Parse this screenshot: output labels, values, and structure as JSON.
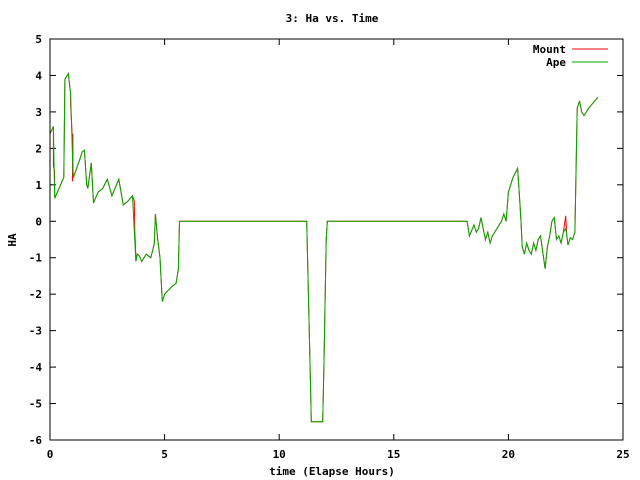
{
  "chart_data": {
    "type": "line",
    "title": "3: Ha vs. Time",
    "xlabel": "time (Elapse Hours)",
    "ylabel": "HA",
    "xlim": [
      0,
      25
    ],
    "ylim": [
      -6,
      5
    ],
    "xticks": [
      0,
      5,
      10,
      15,
      20,
      25
    ],
    "yticks": [
      -6,
      -5,
      -4,
      -3,
      -2,
      -1,
      0,
      1,
      2,
      3,
      4,
      5
    ],
    "grid": false,
    "legend_position": "top-right",
    "series": [
      {
        "name": "Mount",
        "color": "#ff0000",
        "x": [
          0,
          0.15,
          0.15,
          0.2,
          0.2,
          0.22,
          0.6,
          0.65,
          0.8,
          0.9,
          0.9,
          0.98,
          0.98,
          1.0,
          1.0,
          1.02,
          1.3,
          1.4,
          1.5,
          1.55,
          1.6,
          1.65,
          1.8,
          1.9,
          2.1,
          2.3,
          2.5,
          2.7,
          3.0,
          3.2,
          3.4,
          3.6,
          3.65,
          3.68,
          3.7,
          3.72,
          3.75,
          3.8,
          3.9,
          4.0,
          4.2,
          4.4,
          4.5,
          4.55,
          4.6,
          4.7,
          4.8,
          4.9,
          5.0,
          5.3,
          5.5,
          5.6,
          5.65,
          5.7,
          11.2,
          11.35,
          11.4,
          11.6,
          11.9,
          11.95,
          12.05,
          12.1,
          12.2,
          18.2,
          18.3,
          18.5,
          18.6,
          18.7,
          18.8,
          19.0,
          19.1,
          19.2,
          19.3,
          19.5,
          19.7,
          19.8,
          19.9,
          20.0,
          20.2,
          20.4,
          20.5,
          20.55,
          20.6,
          20.7,
          20.8,
          20.9,
          21.0,
          21.1,
          21.2,
          21.3,
          21.4,
          21.6,
          21.7,
          21.8,
          21.9,
          22.0,
          22.1,
          22.2,
          22.3,
          22.4,
          22.5,
          22.55,
          22.6,
          22.7,
          22.8,
          22.9,
          23.0,
          23.1,
          23.2,
          23.3,
          23.5,
          23.9
        ],
        "y": [
          2.4,
          2.6,
          1.5,
          1.4,
          0.7,
          0.65,
          1.2,
          3.9,
          4.05,
          3.5,
          3.2,
          2.2,
          1.1,
          2.4,
          1.4,
          1.2,
          1.7,
          1.9,
          1.95,
          1.5,
          1.0,
          0.9,
          1.6,
          0.5,
          0.8,
          0.9,
          1.15,
          0.7,
          1.15,
          0.45,
          0.55,
          0.7,
          0.6,
          0.55,
          -0.3,
          -0.55,
          -1.1,
          -0.9,
          -0.95,
          -1.1,
          -0.9,
          -1.0,
          -0.75,
          -0.6,
          0.2,
          -0.5,
          -1.0,
          -2.2,
          -2.0,
          -1.8,
          -1.7,
          -1.3,
          0.0,
          0.0,
          0.0,
          -4.0,
          -5.5,
          -5.5,
          -5.5,
          -4.0,
          -0.5,
          0.0,
          0.0,
          0.0,
          -0.4,
          -0.1,
          -0.3,
          -0.2,
          0.1,
          -0.5,
          -0.3,
          -0.6,
          -0.4,
          -0.2,
          0.0,
          0.2,
          0.0,
          0.8,
          1.2,
          1.45,
          0.5,
          0.0,
          -0.7,
          -0.9,
          -0.6,
          -0.8,
          -0.9,
          -0.6,
          -0.8,
          -0.5,
          -0.4,
          -1.3,
          -0.7,
          -0.4,
          0.0,
          0.1,
          -0.5,
          -0.4,
          -0.6,
          -0.3,
          0.15,
          -0.4,
          -0.65,
          -0.45,
          -0.5,
          -0.3,
          3.1,
          3.3,
          3.0,
          2.9,
          3.1,
          3.4
        ]
      },
      {
        "name": "Ape",
        "color": "#00aa00",
        "x": [
          0,
          0.15,
          0.2,
          0.22,
          0.6,
          0.65,
          0.8,
          0.9,
          1.0,
          1.02,
          1.3,
          1.4,
          1.5,
          1.55,
          1.6,
          1.65,
          1.8,
          1.9,
          2.1,
          2.3,
          2.5,
          2.7,
          3.0,
          3.2,
          3.4,
          3.6,
          3.7,
          3.75,
          3.8,
          3.9,
          4.0,
          4.2,
          4.4,
          4.5,
          4.55,
          4.6,
          4.7,
          4.8,
          4.9,
          5.0,
          5.3,
          5.5,
          5.6,
          5.65,
          5.7,
          11.2,
          11.35,
          11.4,
          11.6,
          11.9,
          11.95,
          12.05,
          12.1,
          12.2,
          18.2,
          18.3,
          18.5,
          18.6,
          18.7,
          18.8,
          19.0,
          19.1,
          19.2,
          19.3,
          19.5,
          19.7,
          19.8,
          19.9,
          20.0,
          20.2,
          20.4,
          20.5,
          20.55,
          20.6,
          20.7,
          20.8,
          20.9,
          21.0,
          21.1,
          21.2,
          21.3,
          21.4,
          21.6,
          21.7,
          21.8,
          21.9,
          22.0,
          22.1,
          22.2,
          22.3,
          22.4,
          22.5,
          22.55,
          22.6,
          22.7,
          22.8,
          22.9,
          23.0,
          23.1,
          23.2,
          23.3,
          23.5,
          23.9
        ],
        "y": [
          2.4,
          2.6,
          0.7,
          0.65,
          1.2,
          3.9,
          4.05,
          3.5,
          1.4,
          1.2,
          1.7,
          1.9,
          1.95,
          1.5,
          1.0,
          0.9,
          1.6,
          0.5,
          0.8,
          0.9,
          1.15,
          0.7,
          1.15,
          0.45,
          0.55,
          0.7,
          -0.55,
          -1.1,
          -0.9,
          -0.95,
          -1.1,
          -0.9,
          -1.0,
          -0.75,
          -0.6,
          0.2,
          -0.5,
          -1.0,
          -2.2,
          -2.0,
          -1.8,
          -1.7,
          -1.3,
          0.0,
          0.0,
          0.0,
          -4.0,
          -5.5,
          -5.5,
          -5.5,
          -4.0,
          -0.5,
          0.0,
          0.0,
          0.0,
          -0.4,
          -0.1,
          -0.3,
          -0.2,
          0.1,
          -0.5,
          -0.3,
          -0.6,
          -0.4,
          -0.2,
          0.0,
          0.2,
          0.0,
          0.8,
          1.2,
          1.45,
          0.5,
          0.0,
          -0.7,
          -0.9,
          -0.6,
          -0.8,
          -0.9,
          -0.6,
          -0.8,
          -0.5,
          -0.4,
          -1.3,
          -0.7,
          -0.4,
          0.0,
          0.1,
          -0.5,
          -0.4,
          -0.6,
          -0.3,
          -0.2,
          -0.4,
          -0.65,
          -0.45,
          -0.5,
          -0.3,
          3.1,
          3.3,
          3.0,
          2.9,
          3.1,
          3.4
        ]
      }
    ]
  }
}
